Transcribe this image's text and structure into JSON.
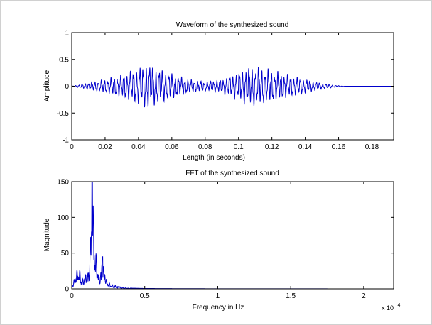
{
  "chart_data": [
    {
      "type": "line",
      "title": "Waveform of the synthesized sound",
      "xlabel": "Length (in seconds)",
      "ylabel": "Amplitude",
      "xlim": [
        0,
        0.193
      ],
      "ylim": [
        -1,
        1
      ],
      "xticks": [
        0,
        0.02,
        0.04,
        0.06,
        0.08,
        0.1,
        0.12,
        0.14,
        0.16,
        0.18
      ],
      "xtick_labels": [
        "0",
        "0.02",
        "0.04",
        "0.06",
        "0.08",
        "0.1",
        "0.12",
        "0.14",
        "0.16",
        "0.18"
      ],
      "yticks": [
        -1,
        -0.5,
        0,
        0.5,
        1
      ],
      "ytick_labels": [
        "-1",
        "-0.5",
        "0",
        "0.5",
        "1"
      ],
      "grid": false,
      "line_color": "#0000cc",
      "series": [
        {
          "x": [
            0,
            0.02,
            0.03,
            0.04,
            0.045,
            0.05,
            0.06,
            0.07,
            0.08,
            0.09,
            0.1,
            0.105,
            0.11,
            0.12,
            0.13,
            0.14,
            0.15,
            0.16,
            0.165,
            0.193
          ],
          "envelope": [
            0,
            0.12,
            0.2,
            0.32,
            0.4,
            0.33,
            0.22,
            0.12,
            0.08,
            0.12,
            0.25,
            0.33,
            0.35,
            0.28,
            0.2,
            0.12,
            0.05,
            0.01,
            0,
            0
          ]
        }
      ]
    },
    {
      "type": "line",
      "title": "FFT of the synthesized sound",
      "xlabel": "Frequency in Hz",
      "ylabel": "Magnitude",
      "xlim": [
        0,
        22050
      ],
      "ylim": [
        0,
        150
      ],
      "xticks": [
        0,
        5000,
        10000,
        15000,
        20000
      ],
      "xtick_labels": [
        "0",
        "0.5",
        "1",
        "1.5",
        "2"
      ],
      "x_multiplier_base": "x 10",
      "x_multiplier_exp": "4",
      "yticks": [
        0,
        50,
        100,
        150
      ],
      "ytick_labels": [
        "0",
        "50",
        "100",
        "150"
      ],
      "grid": false,
      "line_color": "#0000cc",
      "series": [
        {
          "x": [
            0,
            300,
            500,
            700,
            900,
            1200,
            1400,
            1600,
            1900,
            2100,
            2400,
            2700,
            3000,
            3500,
            4000,
            5000,
            8000,
            22050
          ],
          "y": [
            2,
            25,
            32,
            12,
            20,
            30,
            150,
            60,
            15,
            45,
            12,
            6,
            5,
            2,
            1,
            0.5,
            0.2,
            0
          ]
        }
      ]
    }
  ]
}
